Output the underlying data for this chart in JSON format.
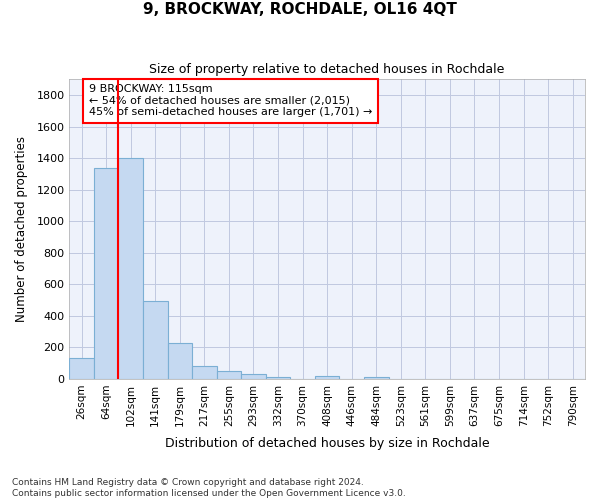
{
  "title": "9, BROCKWAY, ROCHDALE, OL16 4QT",
  "subtitle": "Size of property relative to detached houses in Rochdale",
  "xlabel": "Distribution of detached houses by size in Rochdale",
  "ylabel": "Number of detached properties",
  "bar_color": "#c5d9f1",
  "bar_edge_color": "#7bafd4",
  "background_color": "#eef2fb",
  "grid_color": "#c0c8e0",
  "categories": [
    "26sqm",
    "64sqm",
    "102sqm",
    "141sqm",
    "179sqm",
    "217sqm",
    "255sqm",
    "293sqm",
    "332sqm",
    "370sqm",
    "408sqm",
    "446sqm",
    "484sqm",
    "523sqm",
    "561sqm",
    "599sqm",
    "637sqm",
    "675sqm",
    "714sqm",
    "752sqm",
    "790sqm"
  ],
  "values": [
    135,
    1340,
    1400,
    495,
    230,
    82,
    48,
    30,
    13,
    0,
    20,
    0,
    13,
    0,
    0,
    0,
    0,
    0,
    0,
    0,
    0
  ],
  "ylim": [
    0,
    1900
  ],
  "yticks": [
    0,
    200,
    400,
    600,
    800,
    1000,
    1200,
    1400,
    1600,
    1800
  ],
  "property_name": "9 BROCKWAY: 115sqm",
  "annotation_line1": "← 54% of detached houses are smaller (2,015)",
  "annotation_line2": "45% of semi-detached houses are larger (1,701) →",
  "vline_bar_index": 2,
  "footnote1": "Contains HM Land Registry data © Crown copyright and database right 2024.",
  "footnote2": "Contains public sector information licensed under the Open Government Licence v3.0."
}
